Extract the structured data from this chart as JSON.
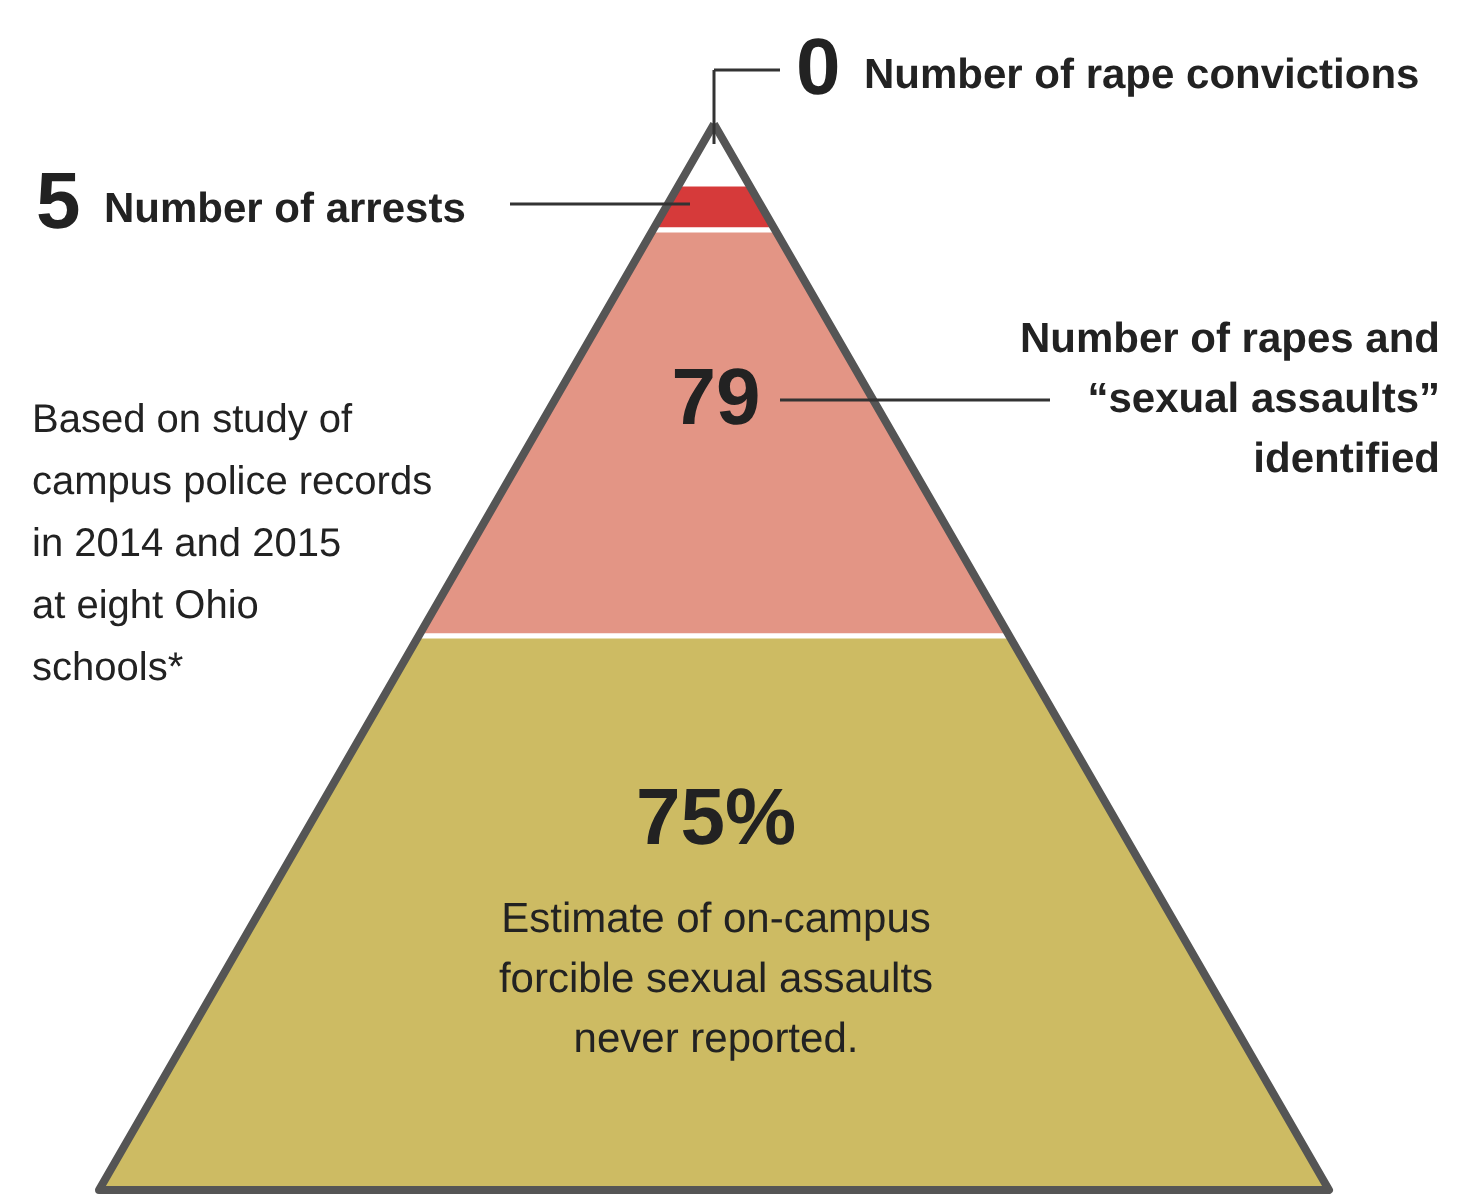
{
  "chart_data": {
    "type": "other",
    "categories": [
      "Number of rape convictions",
      "Number of arrests",
      "Number of rapes and\n“sexual assaults”\nidentified",
      "Estimate of on-campus\nforcible sexual assaults\nnever reported."
    ],
    "values": [
      0,
      5,
      79,
      75
    ],
    "value_labels": [
      "0",
      "5",
      "79",
      "75%"
    ],
    "colors": [
      "#ffffff",
      "#d63a3a",
      "#e39585",
      "#cdbb63"
    ],
    "annotations": [
      "Based on study of\ncampus police records\nin 2014 and 2015\nat eight Ohio\nschools*"
    ]
  }
}
